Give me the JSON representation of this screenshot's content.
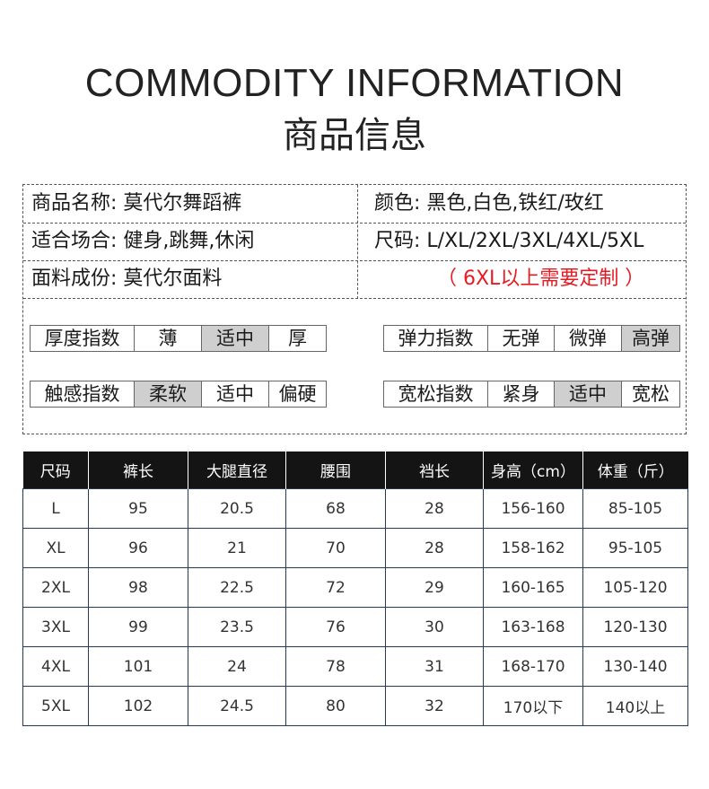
{
  "heading": {
    "en": "COMMODITY INFORMATION",
    "cn": "商品信息"
  },
  "info": {
    "name": "商品名称: 莫代尔舞蹈裤",
    "color": "颜色: 黑色,白色,铁红/玫红",
    "occasion": "适合场合: 健身,跳舞,休闲",
    "sizes": "尺码: L/XL/2XL/3XL/4XL/5XL",
    "fabric": "面料成份: 莫代尔面料",
    "custom_note": "（ 6XL以上需要定制 ）"
  },
  "ratings": [
    {
      "label": "厚度指数",
      "options": [
        "薄",
        "适中",
        "厚"
      ],
      "selected": 1
    },
    {
      "label": "弹力指数",
      "options": [
        "无弹",
        "微弹",
        "高弹"
      ],
      "selected": 2
    },
    {
      "label": "触感指数",
      "options": [
        "柔软",
        "适中",
        "偏硬"
      ],
      "selected": 0
    },
    {
      "label": "宽松指数",
      "options": [
        "紧身",
        "适中",
        "宽松"
      ],
      "selected": 1
    }
  ],
  "size_table": {
    "headers": [
      "尺码",
      "裤长",
      "大腿直径",
      "腰围",
      "裆长",
      "身高（cm）",
      "体重（斤）"
    ],
    "rows": [
      [
        "L",
        "95",
        "20.5",
        "68",
        "28",
        "156-160",
        "85-105"
      ],
      [
        "XL",
        "96",
        "21",
        "70",
        "28",
        "158-162",
        "95-105"
      ],
      [
        "2XL",
        "98",
        "22.5",
        "72",
        "29",
        "160-165",
        "105-120"
      ],
      [
        "3XL",
        "99",
        "23.5",
        "76",
        "30",
        "163-168",
        "120-130"
      ],
      [
        "4XL",
        "101",
        "24",
        "78",
        "31",
        "168-170",
        "130-140"
      ],
      [
        "5XL",
        "102",
        "24.5",
        "80",
        "32",
        "170以下",
        "140以上"
      ]
    ]
  },
  "colors": {
    "selected_bg": "#cfcfcf",
    "header_bg": "#141414",
    "accent_red": "#e51c23"
  }
}
